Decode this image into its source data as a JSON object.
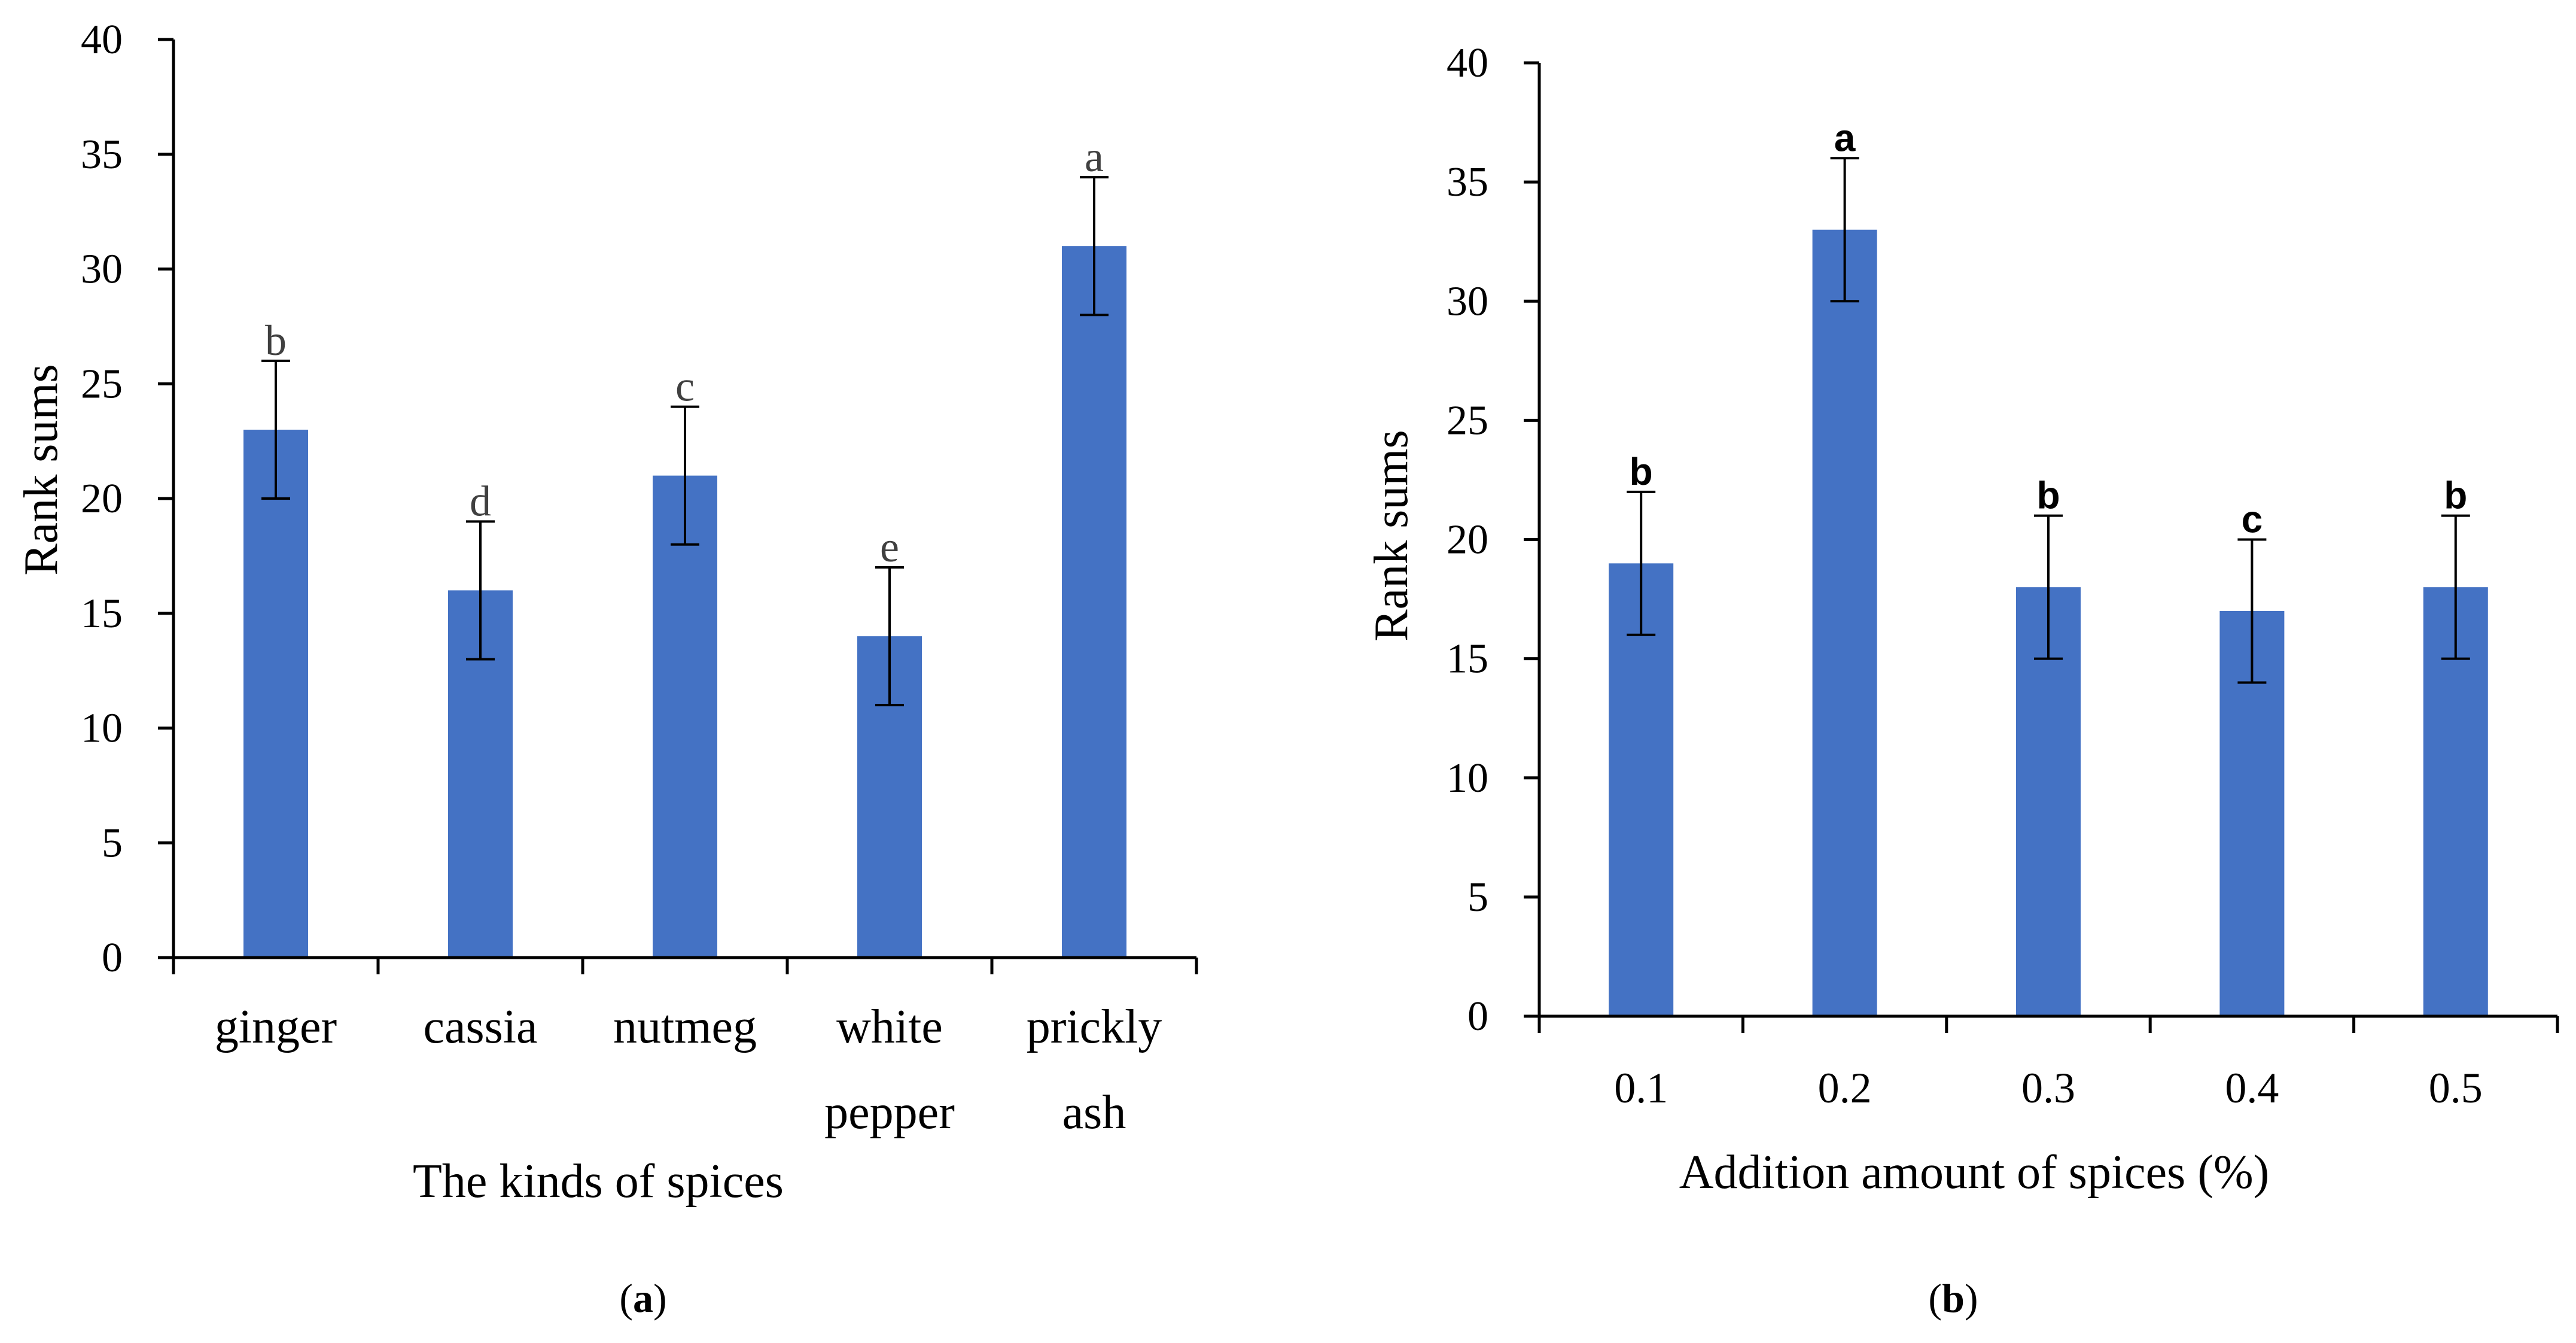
{
  "chart_data": [
    {
      "panel": "a",
      "panel_label": "a",
      "type": "bar",
      "title": "",
      "xlabel": "The kinds of spices",
      "ylabel": "Rank sums",
      "ylim": [
        0,
        40
      ],
      "yticks": [
        "0",
        "5",
        "10",
        "15",
        "20",
        "25",
        "30",
        "35",
        "40"
      ],
      "categories": [
        [
          "ginger"
        ],
        [
          "cassia"
        ],
        [
          "nutmeg"
        ],
        [
          "white",
          "pepper"
        ],
        [
          "prickly",
          "ash"
        ]
      ],
      "values": [
        23,
        16,
        21,
        14,
        31
      ],
      "errors": [
        3,
        3,
        3,
        3,
        3
      ],
      "significance_letters": [
        "b",
        "d",
        "c",
        "e",
        "a"
      ],
      "bar_color": "#4472C4",
      "letter_color": "#404040",
      "grid": false,
      "legend": "none"
    },
    {
      "panel": "b",
      "panel_label": "b",
      "type": "bar",
      "title": "",
      "xlabel": "Addition amount of spices (%)",
      "ylabel": "Rank sums",
      "ylim": [
        0,
        40
      ],
      "yticks": [
        "0",
        "5",
        "10",
        "15",
        "20",
        "25",
        "30",
        "35",
        "40"
      ],
      "categories": [
        [
          "0.1"
        ],
        [
          "0.2"
        ],
        [
          "0.3"
        ],
        [
          "0.4"
        ],
        [
          "0.5"
        ]
      ],
      "values": [
        19,
        33,
        18,
        17,
        18
      ],
      "errors": [
        3,
        3,
        3,
        3,
        3
      ],
      "significance_letters": [
        "b",
        "a",
        "b",
        "c",
        "b"
      ],
      "bar_color": "#4472C4",
      "letter_color": "#000000",
      "grid": false,
      "legend": "none"
    }
  ]
}
